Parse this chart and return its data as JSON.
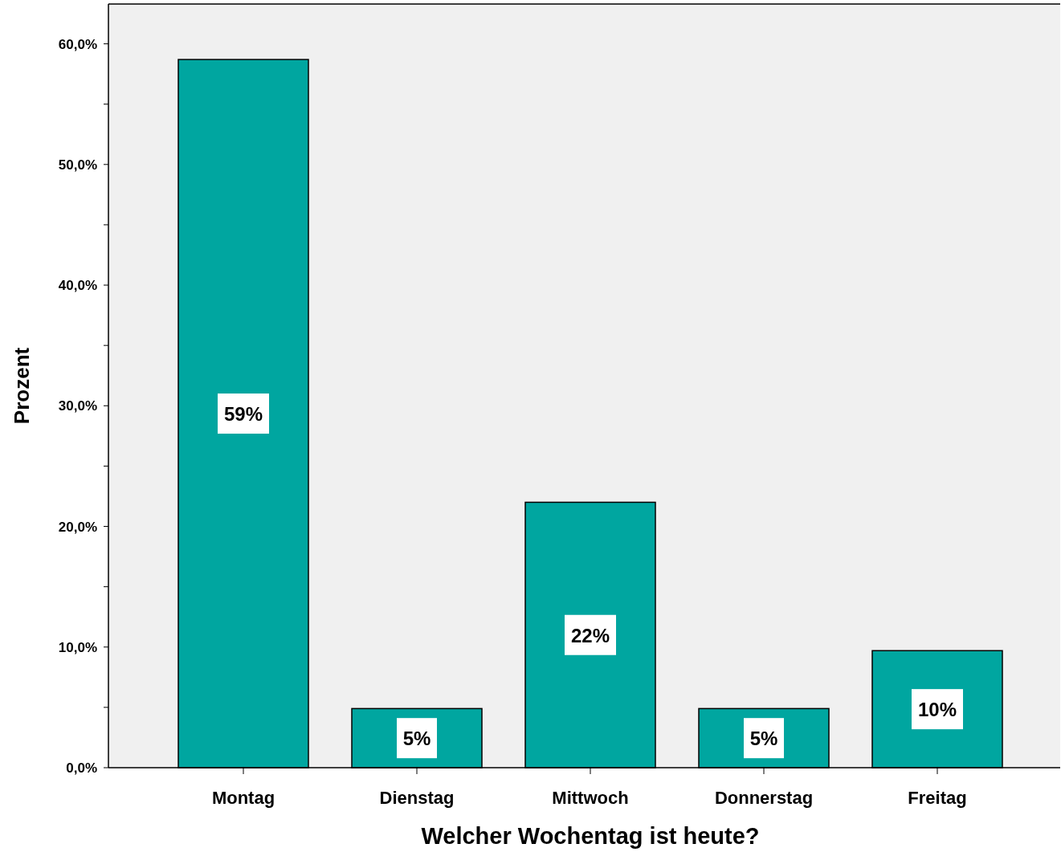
{
  "chart_data": {
    "type": "bar",
    "xlabel": "Welcher Wochentag ist heute?",
    "ylabel": "Prozent",
    "categories": [
      "Montag",
      "Dienstag",
      "Mittwoch",
      "Donnerstag",
      "Freitag"
    ],
    "values": [
      58.7,
      4.9,
      22.0,
      4.9,
      9.7
    ],
    "value_labels": [
      "59%",
      "5%",
      "22%",
      "5%",
      "10%"
    ],
    "color": "#00a6a0",
    "ylim": [
      0,
      63.3
    ],
    "yticks": [
      {
        "value": 0,
        "label": "0,0%"
      },
      {
        "value": 5,
        "label": null
      },
      {
        "value": 10,
        "label": "10,0%"
      },
      {
        "value": 15,
        "label": null
      },
      {
        "value": 20,
        "label": "20,0%"
      },
      {
        "value": 25,
        "label": null
      },
      {
        "value": 30,
        "label": "30,0%"
      },
      {
        "value": 35,
        "label": null
      },
      {
        "value": 40,
        "label": "40,0%"
      },
      {
        "value": 45,
        "label": null
      },
      {
        "value": 50,
        "label": "50,0%"
      },
      {
        "value": 55,
        "label": null
      },
      {
        "value": 60,
        "label": "60,0%"
      }
    ],
    "grid": false
  }
}
